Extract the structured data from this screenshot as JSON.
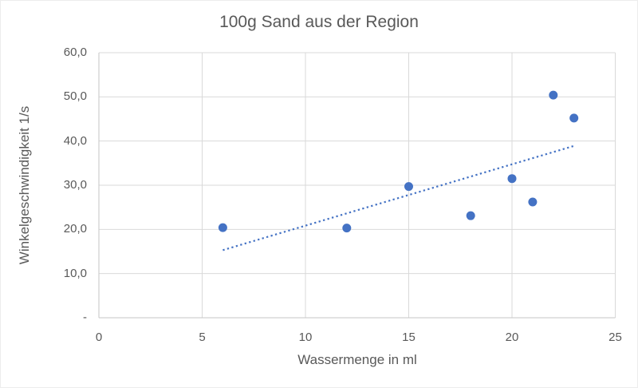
{
  "chart_data": {
    "type": "scatter",
    "title": "100g Sand aus der Region",
    "xlabel": "Wassermenge in ml",
    "ylabel": "Winkelgeschwindigkeit 1/s",
    "xlim": [
      0,
      25
    ],
    "ylim": [
      0,
      60
    ],
    "grid": true,
    "legend": "none",
    "xticks": {
      "values": [
        0,
        5,
        10,
        15,
        20,
        25
      ],
      "labels": [
        "0",
        "5",
        "10",
        "15",
        "20",
        "25"
      ]
    },
    "yticks": {
      "values": [
        0,
        10,
        20,
        30,
        40,
        50,
        60
      ],
      "labels": [
        "-",
        "10,0",
        "20,0",
        "30,0",
        "40,0",
        "50,0",
        "60,0"
      ]
    },
    "points": [
      {
        "x": 6,
        "y": 20.4
      },
      {
        "x": 12,
        "y": 20.3
      },
      {
        "x": 15,
        "y": 29.7
      },
      {
        "x": 18,
        "y": 23.1
      },
      {
        "x": 20,
        "y": 31.5
      },
      {
        "x": 21,
        "y": 26.2
      },
      {
        "x": 22,
        "y": 50.4
      },
      {
        "x": 23,
        "y": 45.2
      }
    ],
    "trendline": {
      "style": "dotted",
      "x1": 6,
      "y1": 15.3,
      "x2": 23,
      "y2": 38.9
    },
    "colors": {
      "marker": "#4472C4",
      "trendline": "#4472C4",
      "gridline": "#D9D9D9",
      "axisline": "#C6C6C6",
      "text": "#595959",
      "background": "#FFFFFF"
    }
  }
}
